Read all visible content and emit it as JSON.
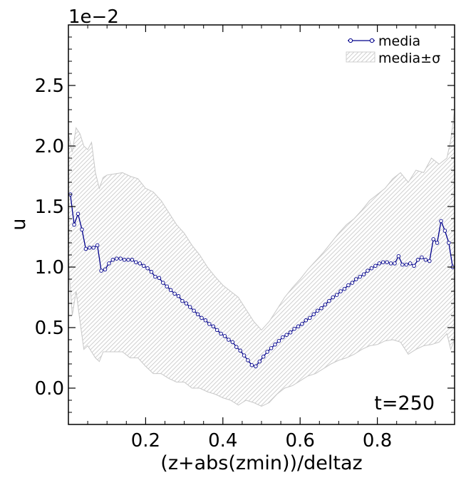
{
  "chart_data": {
    "type": "line",
    "title": "",
    "xlabel": "(z+abs(zmin))/deltaz",
    "ylabel": "u",
    "offset_label": "1e−2",
    "xlim": [
      0.0,
      1.0
    ],
    "ylim": [
      -0.3,
      3.0
    ],
    "xticks": [
      0.2,
      0.4,
      0.6,
      0.8
    ],
    "xtick_labels": [
      "0.2",
      "0.4",
      "0.6",
      "0.8"
    ],
    "yticks": [
      0.0,
      0.5,
      1.0,
      1.5,
      2.0,
      2.5
    ],
    "ytick_labels": [
      "0.0",
      "0.5",
      "1.0",
      "1.5",
      "2.0",
      "2.5"
    ],
    "grid": false,
    "legend_position": "top-right",
    "legend": [
      {
        "label": "media",
        "kind": "line-marker",
        "color": "#00008b"
      },
      {
        "label": "media±σ",
        "kind": "hatched-band",
        "color": "#cccccc"
      }
    ],
    "annotation": "t=250",
    "series": [
      {
        "name": "media",
        "color": "#00008b",
        "marker": "open-circle",
        "x": [
          0.005,
          0.015,
          0.025,
          0.035,
          0.045,
          0.055,
          0.065,
          0.075,
          0.085,
          0.095,
          0.105,
          0.115,
          0.125,
          0.135,
          0.145,
          0.155,
          0.165,
          0.175,
          0.185,
          0.195,
          0.205,
          0.215,
          0.225,
          0.235,
          0.245,
          0.255,
          0.265,
          0.275,
          0.285,
          0.295,
          0.305,
          0.315,
          0.325,
          0.335,
          0.345,
          0.355,
          0.365,
          0.375,
          0.385,
          0.395,
          0.405,
          0.415,
          0.425,
          0.435,
          0.445,
          0.455,
          0.465,
          0.475,
          0.485,
          0.495,
          0.505,
          0.515,
          0.525,
          0.535,
          0.545,
          0.555,
          0.565,
          0.575,
          0.585,
          0.595,
          0.605,
          0.615,
          0.625,
          0.635,
          0.645,
          0.655,
          0.665,
          0.675,
          0.685,
          0.695,
          0.705,
          0.715,
          0.725,
          0.735,
          0.745,
          0.755,
          0.765,
          0.775,
          0.785,
          0.795,
          0.805,
          0.815,
          0.825,
          0.835,
          0.845,
          0.855,
          0.865,
          0.875,
          0.885,
          0.895,
          0.905,
          0.915,
          0.925,
          0.935,
          0.945,
          0.955,
          0.965,
          0.975,
          0.985,
          0.995
        ],
        "y": [
          1.6,
          1.35,
          1.44,
          1.31,
          1.15,
          1.16,
          1.16,
          1.18,
          0.97,
          0.98,
          1.03,
          1.06,
          1.07,
          1.07,
          1.06,
          1.06,
          1.06,
          1.04,
          1.03,
          1.01,
          0.99,
          0.96,
          0.92,
          0.91,
          0.87,
          0.84,
          0.81,
          0.78,
          0.76,
          0.72,
          0.7,
          0.67,
          0.64,
          0.61,
          0.58,
          0.56,
          0.53,
          0.51,
          0.48,
          0.45,
          0.43,
          0.4,
          0.38,
          0.34,
          0.31,
          0.27,
          0.23,
          0.19,
          0.18,
          0.22,
          0.26,
          0.3,
          0.33,
          0.36,
          0.39,
          0.42,
          0.44,
          0.46,
          0.49,
          0.51,
          0.53,
          0.56,
          0.58,
          0.61,
          0.64,
          0.66,
          0.69,
          0.72,
          0.75,
          0.77,
          0.8,
          0.82,
          0.85,
          0.87,
          0.9,
          0.92,
          0.94,
          0.97,
          0.99,
          1.01,
          1.03,
          1.04,
          1.04,
          1.03,
          1.03,
          1.09,
          1.02,
          1.02,
          1.03,
          1.01,
          1.06,
          1.08,
          1.06,
          1.05,
          1.23,
          1.2,
          1.38,
          1.3,
          1.2,
          1.0
        ]
      },
      {
        "name": "media±σ upper",
        "x": [
          0.0,
          0.01,
          0.02,
          0.03,
          0.04,
          0.05,
          0.06,
          0.07,
          0.08,
          0.09,
          0.1,
          0.12,
          0.14,
          0.16,
          0.18,
          0.2,
          0.22,
          0.24,
          0.26,
          0.28,
          0.3,
          0.32,
          0.34,
          0.36,
          0.38,
          0.4,
          0.42,
          0.44,
          0.46,
          0.48,
          0.5,
          0.52,
          0.54,
          0.56,
          0.58,
          0.6,
          0.62,
          0.64,
          0.66,
          0.68,
          0.7,
          0.72,
          0.74,
          0.76,
          0.78,
          0.8,
          0.82,
          0.84,
          0.86,
          0.88,
          0.9,
          0.92,
          0.94,
          0.96,
          0.98,
          0.99,
          1.0
        ],
        "y": [
          2.1,
          1.95,
          2.15,
          2.1,
          2.0,
          1.97,
          2.03,
          1.78,
          1.65,
          1.74,
          1.76,
          1.77,
          1.78,
          1.75,
          1.73,
          1.65,
          1.62,
          1.55,
          1.45,
          1.35,
          1.28,
          1.18,
          1.1,
          1.0,
          0.92,
          0.85,
          0.8,
          0.75,
          0.65,
          0.55,
          0.48,
          0.55,
          0.65,
          0.75,
          0.83,
          0.9,
          0.98,
          1.05,
          1.12,
          1.2,
          1.28,
          1.35,
          1.4,
          1.47,
          1.55,
          1.6,
          1.65,
          1.73,
          1.78,
          1.7,
          1.8,
          1.78,
          1.9,
          1.85,
          1.9,
          2.05,
          2.3
        ]
      },
      {
        "name": "media±σ lower",
        "x": [
          0.0,
          0.01,
          0.02,
          0.03,
          0.04,
          0.05,
          0.06,
          0.07,
          0.08,
          0.09,
          0.1,
          0.12,
          0.14,
          0.16,
          0.18,
          0.2,
          0.22,
          0.24,
          0.26,
          0.28,
          0.3,
          0.32,
          0.34,
          0.36,
          0.38,
          0.4,
          0.42,
          0.44,
          0.46,
          0.48,
          0.5,
          0.52,
          0.54,
          0.56,
          0.58,
          0.6,
          0.62,
          0.64,
          0.66,
          0.68,
          0.7,
          0.72,
          0.74,
          0.76,
          0.78,
          0.8,
          0.82,
          0.84,
          0.86,
          0.88,
          0.9,
          0.92,
          0.94,
          0.96,
          0.98,
          0.99,
          1.0
        ],
        "y": [
          1.05,
          0.6,
          0.8,
          0.55,
          0.32,
          0.35,
          0.3,
          0.25,
          0.22,
          0.3,
          0.3,
          0.3,
          0.3,
          0.25,
          0.25,
          0.18,
          0.12,
          0.12,
          0.08,
          0.05,
          0.05,
          0.0,
          0.0,
          -0.03,
          -0.05,
          -0.08,
          -0.1,
          -0.14,
          -0.1,
          -0.12,
          -0.15,
          -0.12,
          -0.05,
          0.0,
          0.02,
          0.06,
          0.1,
          0.12,
          0.16,
          0.2,
          0.23,
          0.25,
          0.28,
          0.32,
          0.35,
          0.36,
          0.39,
          0.4,
          0.38,
          0.28,
          0.32,
          0.35,
          0.36,
          0.38,
          0.45,
          0.32,
          0.4
        ]
      }
    ]
  }
}
